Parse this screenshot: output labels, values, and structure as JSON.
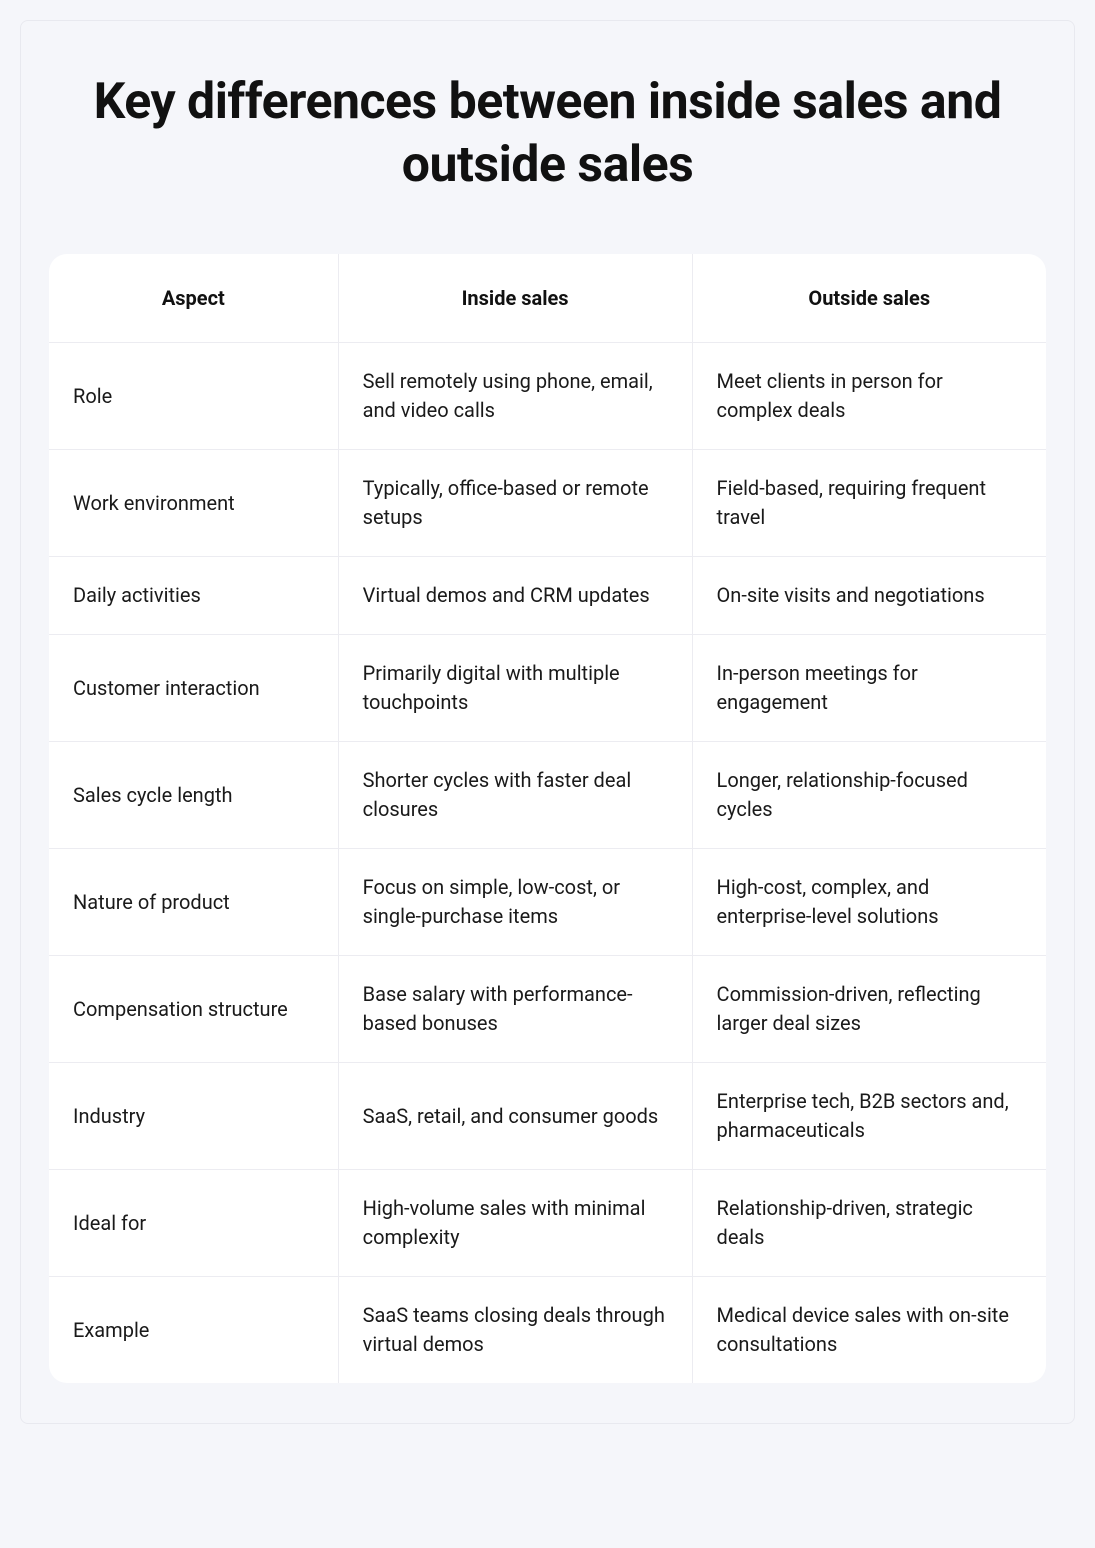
{
  "title": "Key differences between inside sales and outside sales",
  "table": {
    "columns": [
      "Aspect",
      "Inside sales",
      "Outside sales"
    ],
    "rows": [
      [
        "Role",
        "Sell remotely using phone, email, and video calls",
        "Meet clients in person for complex deals"
      ],
      [
        "Work environment",
        "Typically, office-based or remote setups",
        "Field-based, requiring frequent travel"
      ],
      [
        "Daily activities",
        "Virtual demos and CRM updates",
        "On-site visits and negotiations"
      ],
      [
        "Customer interaction",
        "Primarily digital with multiple touchpoints",
        "In-person meetings for engagement"
      ],
      [
        "Sales cycle length",
        "Shorter cycles with faster deal closures",
        "Longer, relationship-focused cycles"
      ],
      [
        "Nature of product",
        "Focus on simple, low-cost, or single-purchase items",
        "High-cost, complex, and enterprise-level solutions"
      ],
      [
        "Compensation structure",
        "Base salary with performance-based bonuses",
        "Commission-driven, reflecting larger deal sizes"
      ],
      [
        "Industry",
        "SaaS, retail, and consumer goods",
        "Enterprise tech, B2B sectors and, pharmaceuticals"
      ],
      [
        "Ideal for",
        "High-volume sales with minimal complexity",
        "Relationship-driven, strategic deals"
      ],
      [
        "Example",
        "SaaS teams closing deals through virtual demos",
        "Medical device sales with on-site consultations"
      ]
    ]
  },
  "styling": {
    "page_background": "#f5f6fa",
    "container_border": "#e8e9ef",
    "table_background": "#ffffff",
    "table_border_radius": 18,
    "cell_border_color": "#ececf1",
    "title_color": "#111111",
    "title_fontsize": 50,
    "title_fontweight": 700,
    "header_fontsize": 20,
    "header_fontweight": 700,
    "body_fontsize": 20,
    "body_color": "#1a1a1a",
    "column_widths_pct": [
      29,
      35.5,
      35.5
    ]
  }
}
